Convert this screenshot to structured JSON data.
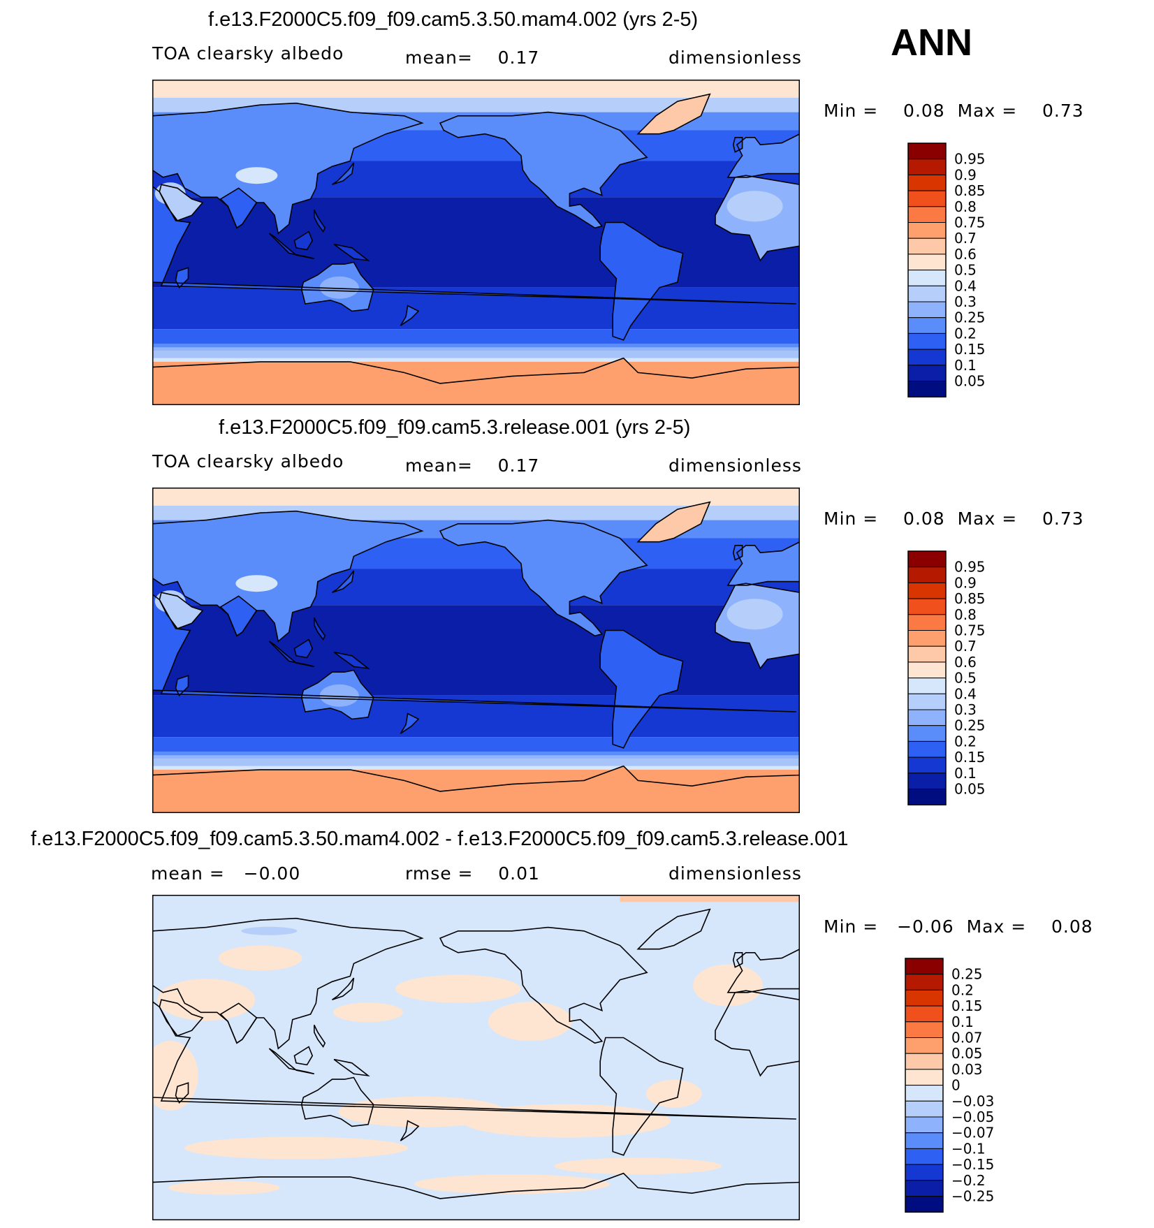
{
  "season": "ANN",
  "panels": [
    {
      "title": "f.e13.F2000C5.f09_f09.cam5.3.50.mam4.002 (yrs 2-5)",
      "left_label": "TOA clearsky albedo",
      "center_label": "mean=    0.17",
      "units": "dimensionless",
      "minmax": "Min =    0.08  Max =    0.73",
      "palette": "field"
    },
    {
      "title": "f.e13.F2000C5.f09_f09.cam5.3.release.001 (yrs 2-5)",
      "left_label": "TOA clearsky albedo",
      "center_label": "mean=    0.17",
      "units": "dimensionless",
      "minmax": "Min =    0.08  Max =    0.73",
      "palette": "field"
    },
    {
      "title": "f.e13.F2000C5.f09_f09.cam5.3.50.mam4.002 - f.e13.F2000C5.f09_f09.cam5.3.release.001",
      "left_label": "mean =   −0.00",
      "center_label": "rmse =    0.01",
      "units": "dimensionless",
      "minmax": "Min =   −0.06  Max =    0.08",
      "palette": "diff"
    }
  ],
  "chart_data": [
    {
      "type": "heatmap",
      "title": "f.e13.F2000C5.f09_f09.cam5.3.50.mam4.002 (yrs 2-5)",
      "variable": "TOA clearsky albedo",
      "mean": 0.17,
      "min": 0.08,
      "max": 0.73,
      "units": "dimensionless",
      "colorbar_levels": [
        "0.95",
        "0.9",
        "0.85",
        "0.8",
        "0.75",
        "0.7",
        "0.6",
        "0.5",
        "0.4",
        "0.3",
        "0.25",
        "0.2",
        "0.15",
        "0.1",
        "0.05"
      ]
    },
    {
      "type": "heatmap",
      "title": "f.e13.F2000C5.f09_f09.cam5.3.release.001 (yrs 2-5)",
      "variable": "TOA clearsky albedo",
      "mean": 0.17,
      "min": 0.08,
      "max": 0.73,
      "units": "dimensionless",
      "colorbar_levels": [
        "0.95",
        "0.9",
        "0.85",
        "0.8",
        "0.75",
        "0.7",
        "0.6",
        "0.5",
        "0.4",
        "0.3",
        "0.25",
        "0.2",
        "0.15",
        "0.1",
        "0.05"
      ]
    },
    {
      "type": "heatmap",
      "title": "f.e13.F2000C5.f09_f09.cam5.3.50.mam4.002 - f.e13.F2000C5.f09_f09.cam5.3.release.001",
      "mean": -0.0,
      "rmse": 0.01,
      "min": -0.06,
      "max": 0.08,
      "units": "dimensionless",
      "colorbar_levels": [
        "0.25",
        "0.2",
        "0.15",
        "0.1",
        "0.07",
        "0.05",
        "0.03",
        "0",
        "−0.03",
        "−0.05",
        "−0.07",
        "−0.1",
        "−0.15",
        "−0.2",
        "−0.25"
      ]
    }
  ],
  "colors": {
    "field": [
      "#8a0000",
      "#b51a00",
      "#d83500",
      "#f0501c",
      "#fb7a44",
      "#fda06e",
      "#fdc9a8",
      "#fde5d2",
      "#d6e6fb",
      "#b6cffa",
      "#8eb2fb",
      "#5a8cfa",
      "#2f60f4",
      "#1638d2",
      "#0a1ea8",
      "#000d80"
    ],
    "diff": [
      "#8a0000",
      "#b51a00",
      "#d83500",
      "#f0501c",
      "#fb7a44",
      "#fda06e",
      "#fdc9a8",
      "#fde5d2",
      "#d6e6fb",
      "#b6cffa",
      "#8eb2fb",
      "#5a8cfa",
      "#2f60f4",
      "#1638d2",
      "#0a1ea8",
      "#000d80"
    ]
  }
}
